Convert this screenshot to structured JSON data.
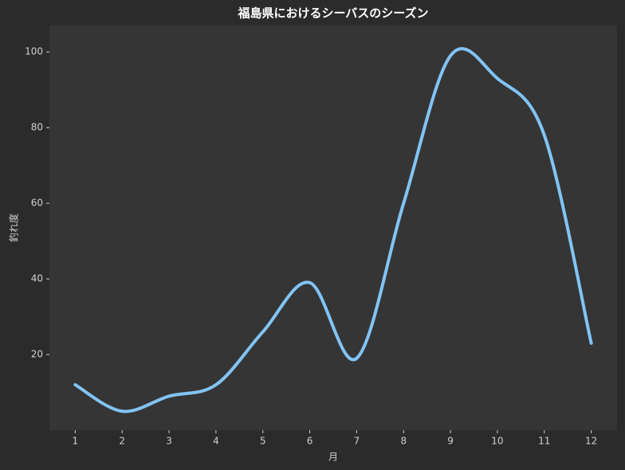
{
  "chart_data": {
    "type": "line",
    "title": "福島県におけるシーバスのシーズン",
    "x_label": "月",
    "y_label": "釣れ度",
    "x": [
      1,
      2,
      3,
      4,
      5,
      6,
      7,
      8,
      9,
      10,
      11,
      12
    ],
    "series": [
      {
        "name": "釣れ度",
        "color": "#82c4f5",
        "values": [
          12,
          5,
          9,
          12,
          26,
          39,
          19,
          60,
          99,
          93,
          78,
          23
        ]
      }
    ],
    "xlim": [
      0.45,
      12.55
    ],
    "ylim": [
      0,
      107
    ],
    "xticks": [
      1,
      2,
      3,
      4,
      5,
      6,
      7,
      8,
      9,
      10,
      11,
      12
    ],
    "yticks": [
      20,
      40,
      60,
      80,
      100
    ],
    "grid": false,
    "smooth": true
  }
}
